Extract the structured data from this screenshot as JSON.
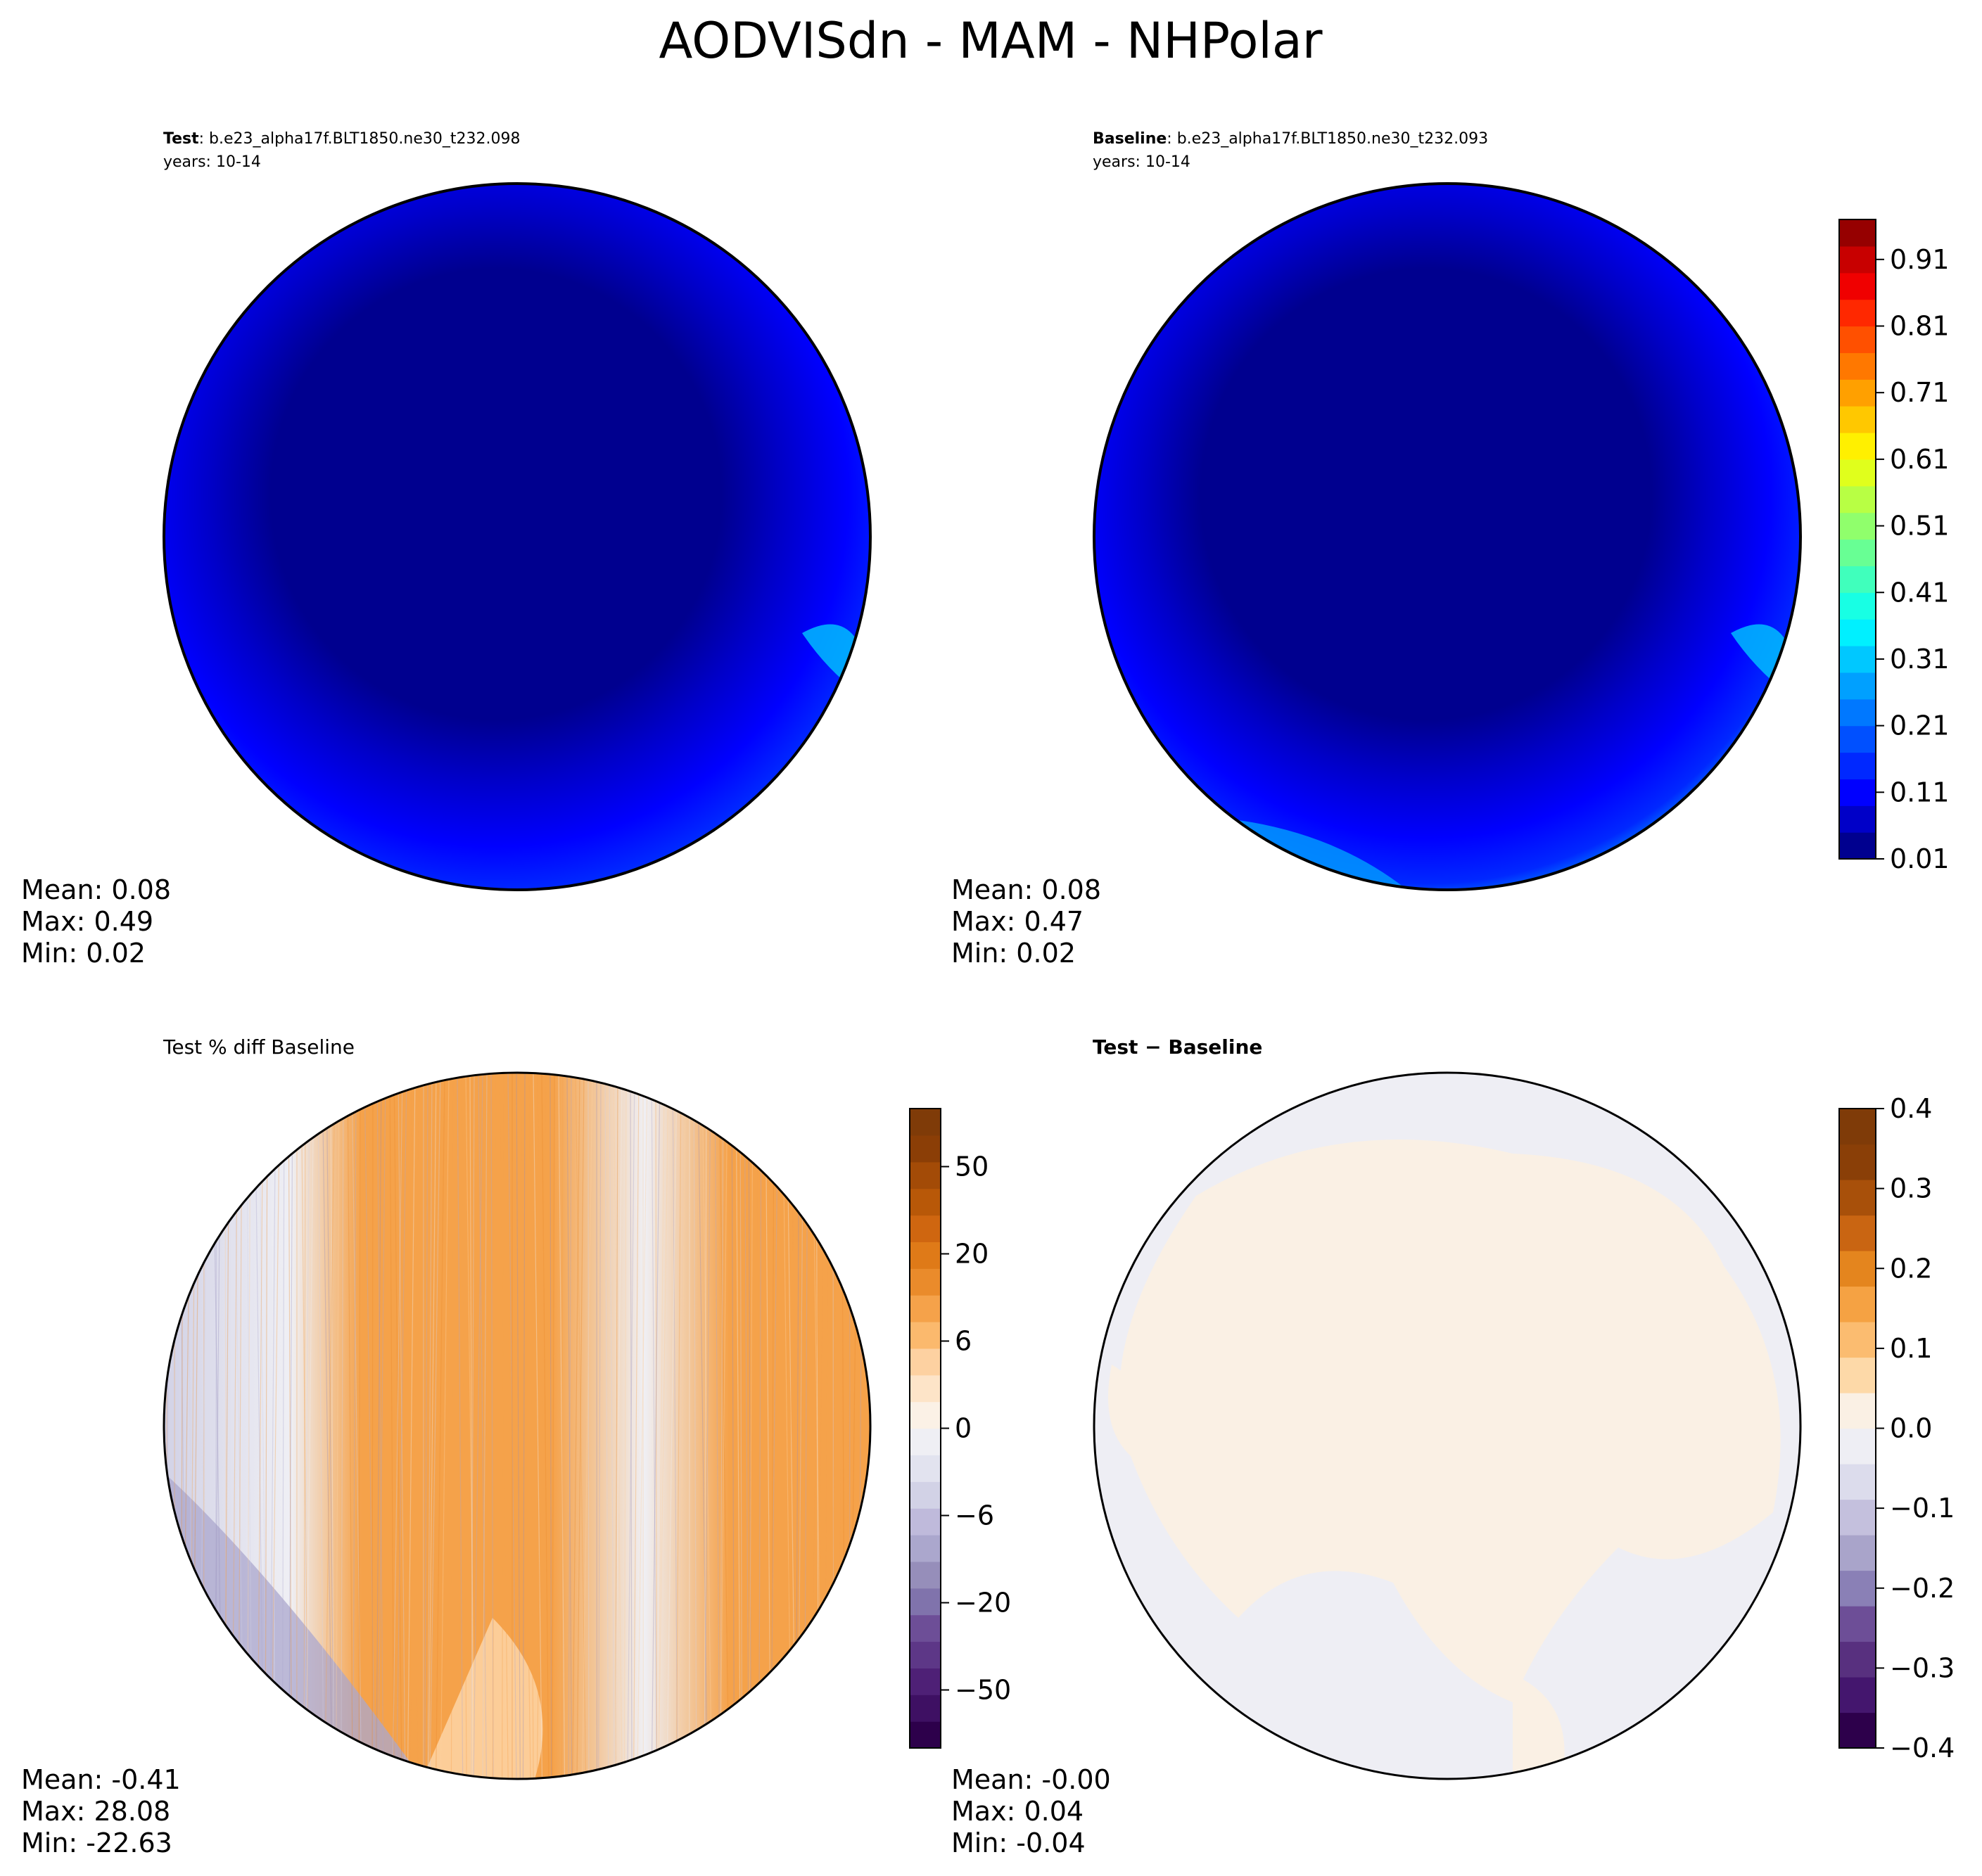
{
  "title": "AODVISdn - MAM - NHPolar",
  "panels": [
    {
      "id": "test",
      "label_bold": "Test",
      "label_rest": ": b.e23_alpha17f.BLT1850.ne30_t232.098",
      "years": "years: 10-14",
      "stats": {
        "mean": "Mean:  0.08",
        "max": "Max:  0.49",
        "min": "Min:  0.02"
      }
    },
    {
      "id": "baseline",
      "label_bold": "Baseline",
      "label_rest": ": b.e23_alpha17f.BLT1850.ne30_t232.093",
      "years": "years: 10-14",
      "stats": {
        "mean": "Mean:  0.08",
        "max": "Max:  0.47",
        "min": "Min:  0.02"
      }
    },
    {
      "id": "pctdiff",
      "label_plain": "Test % diff Baseline",
      "stats": {
        "mean": "Mean: -0.41",
        "max": "Max: 28.08",
        "min": "Min: -22.63"
      }
    },
    {
      "id": "diff",
      "label_bold": "Test − Baseline",
      "stats": {
        "mean": "Mean: -0.00",
        "max": "Max:  0.04",
        "min": "Min: -0.04"
      }
    }
  ],
  "colorbars": {
    "aod": {
      "ticks": [
        "0.01",
        "0.11",
        "0.21",
        "0.31",
        "0.41",
        "0.51",
        "0.61",
        "0.71",
        "0.81",
        "0.91"
      ],
      "colors": [
        "#00008f",
        "#0000c8",
        "#0000ff",
        "#0028ff",
        "#0050ff",
        "#0078ff",
        "#00a0ff",
        "#00c8ff",
        "#00f0ff",
        "#18ffe4",
        "#40ffbc",
        "#68ff94",
        "#90ff6c",
        "#b8ff44",
        "#e0ff1c",
        "#fff000",
        "#ffc800",
        "#ffa000",
        "#ff7800",
        "#ff5000",
        "#ff2800",
        "#f00000",
        "#c80000",
        "#960000"
      ]
    },
    "pct": {
      "ticks": [
        "−50",
        "−20",
        "−6",
        "0",
        "6",
        "20",
        "50"
      ],
      "colors": [
        "#2d004b",
        "#3e1063",
        "#4e2076",
        "#5d3787",
        "#6d4e97",
        "#8073ac",
        "#968eba",
        "#aba7cd",
        "#bfbadb",
        "#d2d2e6",
        "#e2e3ef",
        "#efeff4",
        "#fbf1e6",
        "#fde4c8",
        "#fdd1a1",
        "#fbb96d",
        "#f5a24a",
        "#ea8b2b",
        "#df7a18",
        "#cf6610",
        "#b85808",
        "#a34b07",
        "#8b3e06",
        "#7f3b08"
      ]
    },
    "diff": {
      "ticks": [
        "−0.4",
        "−0.3",
        "−0.2",
        "−0.1",
        "0.0",
        "0.1",
        "0.2",
        "0.3",
        "0.4"
      ],
      "colors": [
        "#2d004b",
        "#44166e",
        "#58307f",
        "#6d4e97",
        "#8a80b6",
        "#a9a4ca",
        "#c4c0dd",
        "#dcdcec",
        "#eeeef4",
        "#faf0e4",
        "#fdd9a8",
        "#fbbc70",
        "#f5a243",
        "#e4851e",
        "#c96512",
        "#a8500a",
        "#8a3f07",
        "#7f3b08"
      ]
    }
  },
  "icons": {
    "coastline": "coastline-outline-icon"
  }
}
